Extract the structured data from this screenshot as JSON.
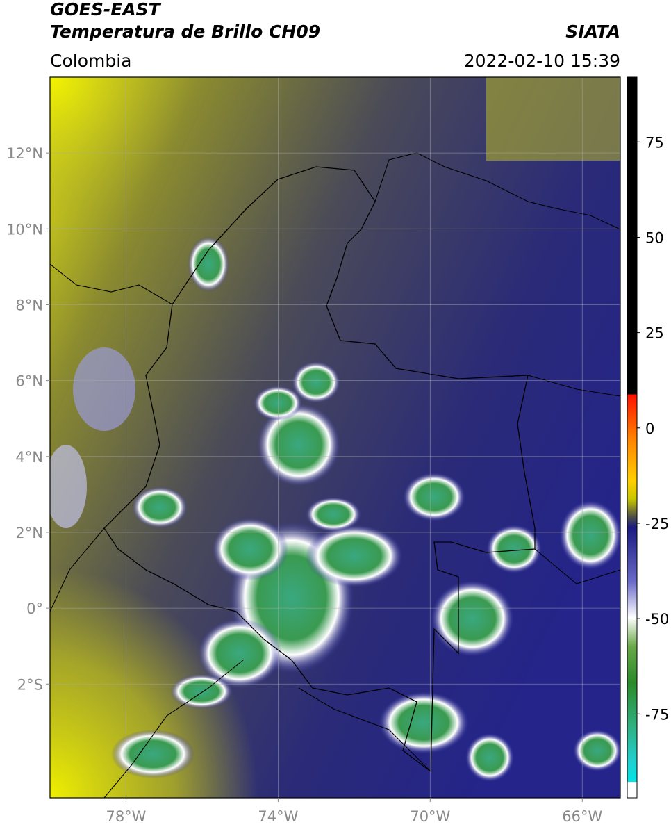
{
  "header": {
    "satellite": "GOES-EAST",
    "product": "Temperatura de Brillo CH09",
    "region": "Colombia",
    "source": "SIATA",
    "datetime": "2022-02-10 15:39"
  },
  "map": {
    "xlim": [
      -80,
      -65
    ],
    "ylim": [
      -5,
      14
    ],
    "xticks": [
      {
        "value": -78,
        "label": "78°W"
      },
      {
        "value": -74,
        "label": "74°W"
      },
      {
        "value": -70,
        "label": "70°W"
      },
      {
        "value": -66,
        "label": "66°W"
      }
    ],
    "yticks": [
      {
        "value": 12,
        "label": "12°N"
      },
      {
        "value": 10,
        "label": "10°N"
      },
      {
        "value": 8,
        "label": "8°N"
      },
      {
        "value": 6,
        "label": "6°N"
      },
      {
        "value": 4,
        "label": "4°N"
      },
      {
        "value": 2,
        "label": "2°N"
      },
      {
        "value": 0,
        "label": "0°"
      },
      {
        "value": -2,
        "label": "2°S"
      }
    ],
    "grid": true
  },
  "colorbar": {
    "lim": [
      -97,
      92
    ],
    "ticks": [
      75,
      50,
      25,
      0,
      -25,
      -50,
      -75
    ]
  }
}
